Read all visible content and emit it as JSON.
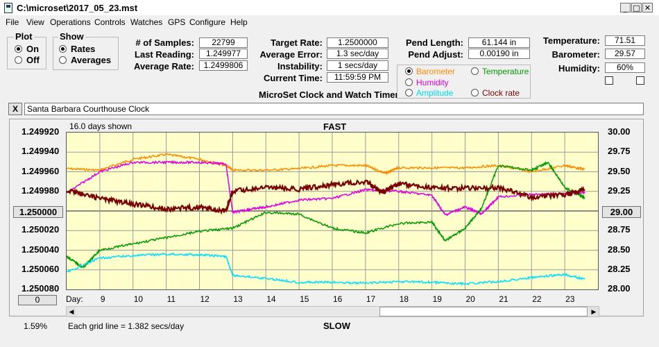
{
  "window": {
    "title": "C:\\microset\\2017_05_23.mst",
    "min": "_",
    "max": "□",
    "close": "✕"
  },
  "menu": [
    "File",
    "View",
    "Operations",
    "Controls",
    "Watches",
    "GPS",
    "Configure",
    "Help"
  ],
  "plot_group": {
    "title": "Plot",
    "on": "On",
    "off": "Off",
    "selected": "On"
  },
  "show_group": {
    "title": "Show",
    "rates": "Rates",
    "averages": "Averages",
    "selected": "Rates"
  },
  "stats": {
    "samples_label": "# of Samples:",
    "samples": "22799",
    "last_label": "Last Reading:",
    "last": "1.249977",
    "avg_label": "Average Rate:",
    "avg": "1.2499806",
    "target_label": "Target Rate:",
    "target": "1.2500000",
    "avgerr_label": "Average Error:",
    "avgerr": "1.3 sec/day",
    "instab_label": "Instability:",
    "instab": "1 secs/day",
    "time_label": "Current Time:",
    "time": "11:59:59 PM",
    "pendlen_label": "Pend Length:",
    "pendlen": "61.144 in",
    "pendadj_label": "Pend Adjust:",
    "pendadj": "0.00190 in",
    "temp_label": "Temperature:",
    "temp": "71.51",
    "baro_label": "Barometer:",
    "baro": "29.57",
    "hum_label": "Humidity:",
    "hum": "60%"
  },
  "device_title": "MicroSet Clock and Watch Timer",
  "aux_options": {
    "barometer": "Barometer",
    "temperature": "Temperature",
    "humidity": "Humidity",
    "amplitude": "Amplitude",
    "clock_rate": "Clock rate",
    "selected": "Barometer"
  },
  "colors": {
    "barometer": "#ff8c00",
    "temperature": "#009900",
    "humidity": "#e000e0",
    "amplitude": "#00e0ff",
    "rate": "#7a0000"
  },
  "clock_name": "Santa Barbara Courthouse Clock",
  "close_x": "X",
  "chart_header": {
    "days_shown": "16.0 days shown",
    "fast": "FAST",
    "slow": "SLOW",
    "day_label": "Day:",
    "grid_note": "Each grid line = 1.382 secs/day",
    "percent": "1.59%"
  },
  "left_btn": "1.250000",
  "right_btn": "29.00",
  "zero_btn": "0",
  "chart_data": {
    "type": "line",
    "left_axis_ticks": [
      "1.249920",
      "1.249940",
      "1.249960",
      "1.249980",
      "1.250000",
      "1.250020",
      "1.250040",
      "1.250060",
      "1.250080"
    ],
    "right_axis_ticks": [
      "30.00",
      "29.75",
      "29.50",
      "29.25",
      "29.00",
      "28.75",
      "28.50",
      "28.25",
      "28.00"
    ],
    "left_ylim": [
      1.24992,
      1.25008
    ],
    "right_ylim": [
      28.0,
      30.0
    ],
    "x_days": [
      "9",
      "10",
      "11",
      "12",
      "13",
      "14",
      "15",
      "16",
      "17",
      "18",
      "19",
      "20",
      "21",
      "22",
      "23"
    ],
    "xlim": [
      8.0,
      24.0
    ],
    "series": [
      {
        "name": "Barometer",
        "color": "#ff8c00",
        "x": [
          8.0,
          9,
          10,
          11,
          12,
          12.8,
          13,
          14,
          15,
          16,
          17,
          17.6,
          18,
          19,
          20,
          21,
          22,
          23,
          23.6
        ],
        "y": [
          29.54,
          29.52,
          29.66,
          29.72,
          29.66,
          29.58,
          29.52,
          29.52,
          29.54,
          29.58,
          29.58,
          29.48,
          29.55,
          29.55,
          29.55,
          29.58,
          29.5,
          29.58,
          29.53
        ]
      },
      {
        "name": "Humidity",
        "color": "#e000e0",
        "x": [
          8.0,
          9,
          10,
          11,
          12,
          12.8,
          13,
          13.5,
          14,
          15,
          16,
          17,
          18,
          19,
          19.4,
          20,
          20.5,
          21,
          22,
          23,
          23.6
        ],
        "y": [
          29.23,
          29.5,
          29.62,
          29.62,
          29.62,
          29.6,
          28.98,
          29.02,
          29.05,
          29.14,
          29.16,
          29.27,
          29.25,
          29.2,
          28.95,
          29.05,
          28.96,
          29.18,
          29.21,
          29.22,
          29.24
        ]
      },
      {
        "name": "Temperature",
        "color": "#009900",
        "x": [
          8.0,
          8.5,
          9,
          10,
          11,
          12,
          13,
          14,
          15,
          16,
          17,
          18,
          19,
          19.4,
          20,
          20.5,
          21,
          22,
          22.5,
          23,
          23.6
        ],
        "y": [
          28.42,
          28.28,
          28.5,
          28.58,
          28.66,
          28.74,
          28.78,
          28.98,
          28.96,
          28.78,
          28.72,
          28.84,
          28.86,
          28.62,
          28.78,
          29.04,
          29.58,
          29.52,
          29.62,
          29.3,
          29.17
        ]
      },
      {
        "name": "Amplitude",
        "color": "#00e0ff",
        "x": [
          8.0,
          9,
          10,
          11,
          12,
          12.8,
          13,
          14,
          15,
          16,
          17,
          18,
          19,
          20,
          21,
          22,
          23,
          23.6
        ],
        "y": [
          28.22,
          28.4,
          28.43,
          28.45,
          28.44,
          28.42,
          28.18,
          28.14,
          28.09,
          28.09,
          28.08,
          28.1,
          28.09,
          28.07,
          28.1,
          28.15,
          28.19,
          28.13
        ]
      },
      {
        "name": "Clock rate",
        "color": "#7a0000",
        "x": [
          8.0,
          9,
          10,
          11,
          12,
          12.8,
          13,
          14,
          15,
          16,
          17,
          17.5,
          18,
          19,
          20,
          21,
          22,
          23,
          23.6
        ],
        "y": [
          1.249979,
          1.249987,
          1.249993,
          1.249998,
          1.249996,
          1.25,
          1.24998,
          1.249976,
          1.249978,
          1.249973,
          1.24997,
          1.249981,
          1.249972,
          1.249976,
          1.249977,
          1.249976,
          1.249986,
          1.249984,
          1.249978
        ]
      }
    ]
  }
}
